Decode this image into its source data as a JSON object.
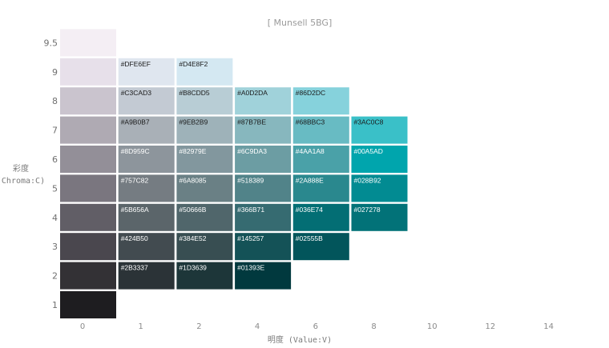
{
  "chart_data": {
    "type": "heatmap",
    "title": "[ Munsell  5BG]",
    "xlabel": "明度 (Value:V)",
    "ylabel_top": "彩度",
    "ylabel_bottom": "(Chroma:C)",
    "x_ticks": [
      "0",
      "1",
      "2",
      "4",
      "6",
      "8",
      "10",
      "12",
      "14"
    ],
    "y_ticks": [
      "1",
      "2",
      "3",
      "4",
      "5",
      "6",
      "7",
      "8",
      "9",
      "9.5"
    ],
    "cells": [
      {
        "value": "9.5",
        "col": 0,
        "hex": "#F4EEF4",
        "label": ""
      },
      {
        "value": "9",
        "col": 0,
        "hex": "#E7E0EA",
        "label": ""
      },
      {
        "value": "9",
        "col": 1,
        "hex": "#DFE6EF",
        "label": "#DFE6EF"
      },
      {
        "value": "9",
        "col": 2,
        "hex": "#D4E8F2",
        "label": "#D4E8F2"
      },
      {
        "value": "8",
        "col": 0,
        "hex": "#CAC4CE",
        "label": ""
      },
      {
        "value": "8",
        "col": 1,
        "hex": "#C3CAD3",
        "label": "#C3CAD3"
      },
      {
        "value": "8",
        "col": 2,
        "hex": "#B8CDD5",
        "label": "#B8CDD5"
      },
      {
        "value": "8",
        "col": 3,
        "hex": "#A0D2DA",
        "label": "#A0D2DA"
      },
      {
        "value": "8",
        "col": 4,
        "hex": "#86D2DC",
        "label": "#86D2DC"
      },
      {
        "value": "7",
        "col": 0,
        "hex": "#AFAAB3",
        "label": ""
      },
      {
        "value": "7",
        "col": 1,
        "hex": "#A9B0B7",
        "label": "#A9B0B7"
      },
      {
        "value": "7",
        "col": 2,
        "hex": "#9EB2B9",
        "label": "#9EB2B9"
      },
      {
        "value": "7",
        "col": 3,
        "hex": "#87B7BE",
        "label": "#87B7BE"
      },
      {
        "value": "7",
        "col": 4,
        "hex": "#68BBC3",
        "label": "#68BBC3"
      },
      {
        "value": "7",
        "col": 5,
        "hex": "#3AC0C8",
        "label": "#3AC0C8"
      },
      {
        "value": "6",
        "col": 0,
        "hex": "#938F98",
        "label": ""
      },
      {
        "value": "6",
        "col": 1,
        "hex": "#8D959C",
        "label": "#8D959C"
      },
      {
        "value": "6",
        "col": 2,
        "hex": "#82979E",
        "label": "#82979E"
      },
      {
        "value": "6",
        "col": 3,
        "hex": "#6C9DA3",
        "label": "#6C9DA3"
      },
      {
        "value": "6",
        "col": 4,
        "hex": "#4AA1A8",
        "label": "#4AA1A8"
      },
      {
        "value": "6",
        "col": 5,
        "hex": "#00A5AD",
        "label": "#00A5AD"
      },
      {
        "value": "5",
        "col": 0,
        "hex": "#7A767F",
        "label": ""
      },
      {
        "value": "5",
        "col": 1,
        "hex": "#757C82",
        "label": "#757C82"
      },
      {
        "value": "5",
        "col": 2,
        "hex": "#6A8085",
        "label": "#6A8085"
      },
      {
        "value": "5",
        "col": 3,
        "hex": "#518389",
        "label": "#518389"
      },
      {
        "value": "5",
        "col": 4,
        "hex": "#2A888E",
        "label": "#2A888E"
      },
      {
        "value": "5",
        "col": 5,
        "hex": "#028B92",
        "label": "#028B92"
      },
      {
        "value": "4",
        "col": 0,
        "hex": "#615E66",
        "label": ""
      },
      {
        "value": "4",
        "col": 1,
        "hex": "#5B656A",
        "label": "#5B656A"
      },
      {
        "value": "4",
        "col": 2,
        "hex": "#50666B",
        "label": "#50666B"
      },
      {
        "value": "4",
        "col": 3,
        "hex": "#366B71",
        "label": "#366B71"
      },
      {
        "value": "4",
        "col": 4,
        "hex": "#036E74",
        "label": "#036E74"
      },
      {
        "value": "4",
        "col": 5,
        "hex": "#027278",
        "label": "#027278"
      },
      {
        "value": "3",
        "col": 0,
        "hex": "#4A474E",
        "label": ""
      },
      {
        "value": "3",
        "col": 1,
        "hex": "#424B50",
        "label": "#424B50"
      },
      {
        "value": "3",
        "col": 2,
        "hex": "#384E52",
        "label": "#384E52"
      },
      {
        "value": "3",
        "col": 3,
        "hex": "#145257",
        "label": "#145257"
      },
      {
        "value": "3",
        "col": 4,
        "hex": "#02555B",
        "label": "#02555B"
      },
      {
        "value": "2",
        "col": 0,
        "hex": "#333135",
        "label": ""
      },
      {
        "value": "2",
        "col": 1,
        "hex": "#2B3337",
        "label": "#2B3337"
      },
      {
        "value": "2",
        "col": 2,
        "hex": "#1D3639",
        "label": "#1D3639"
      },
      {
        "value": "2",
        "col": 3,
        "hex": "#01393E",
        "label": "#01393E"
      },
      {
        "value": "1",
        "col": 0,
        "hex": "#1E1D20",
        "label": ""
      }
    ]
  }
}
